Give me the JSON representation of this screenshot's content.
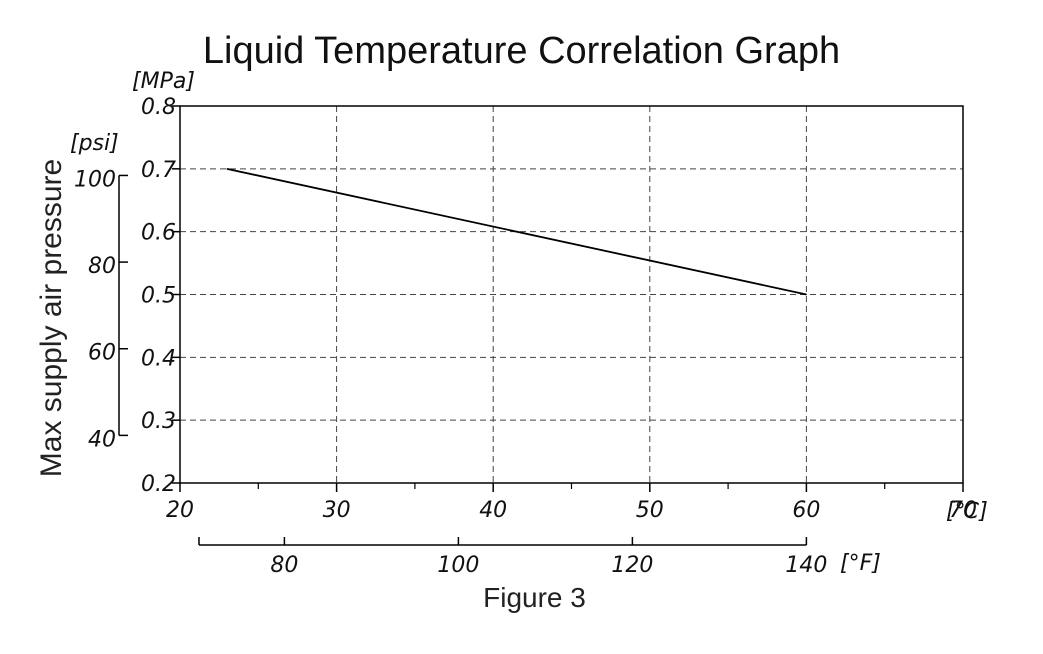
{
  "chart_data": {
    "type": "line",
    "title": "Liquid Temperature Correlation Graph",
    "caption": "Figure 3",
    "ylabel": "Max supply air pressure",
    "y_unit_mpa": "[MPa]",
    "y_unit_psi": "[psi]",
    "x_unit_c": "[℃]",
    "x_unit_f": "[°F]",
    "xlim": [
      20,
      70
    ],
    "ylim": [
      0.2,
      0.8
    ],
    "x_ticks": [
      "20",
      "30",
      "40",
      "50",
      "60",
      "70"
    ],
    "y_ticks": [
      "0.2",
      "0.3",
      "0.4",
      "0.5",
      "0.6",
      "0.7",
      "0.8"
    ],
    "psi_ticks": [
      {
        "label": "40",
        "psi": 40
      },
      {
        "label": "60",
        "psi": 60
      },
      {
        "label": "80",
        "psi": 80
      },
      {
        "label": "100",
        "psi": 100
      }
    ],
    "f_ticks": [
      {
        "label": "80",
        "f": 80
      },
      {
        "label": "100",
        "f": 100
      },
      {
        "label": "120",
        "f": 120
      },
      {
        "label": "140",
        "f": 140
      }
    ],
    "grid": true,
    "series": [
      {
        "name": "Max supply air pressure",
        "x": [
          23,
          60
        ],
        "y": [
          0.7,
          0.5
        ]
      }
    ]
  },
  "colors": {
    "line": "#000000",
    "grid": "#444444",
    "axis": "#000000"
  }
}
